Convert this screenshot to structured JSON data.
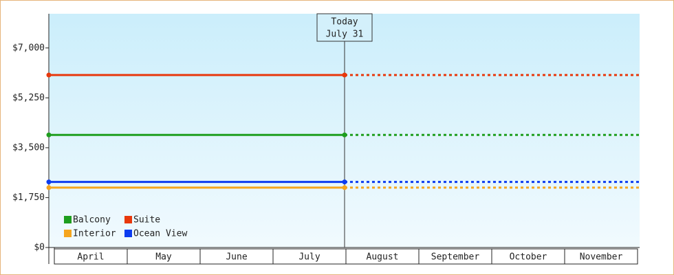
{
  "chart_data": {
    "type": "line",
    "categories": [
      "April",
      "May",
      "June",
      "July",
      "August",
      "September",
      "October",
      "November"
    ],
    "annotation": {
      "title": "Today",
      "date": "July 31"
    },
    "series": [
      {
        "name": "Balcony",
        "color": "#1e9e1e",
        "value": 3950
      },
      {
        "name": "Suite",
        "color": "#e8380c",
        "value": 6050
      },
      {
        "name": "Interior",
        "color": "#f5a51e",
        "value": 2100
      },
      {
        "name": "Ocean View",
        "color": "#0c3cf0",
        "value": 2300
      }
    ],
    "ylim": [
      0,
      8200
    ],
    "yticks": [
      {
        "value": 0,
        "label": "$0"
      },
      {
        "value": 1750,
        "label": "$1,750"
      },
      {
        "value": 3500,
        "label": "$3,500"
      },
      {
        "value": 5250,
        "label": "$5,250"
      },
      {
        "value": 7000,
        "label": "$7,000"
      }
    ]
  }
}
